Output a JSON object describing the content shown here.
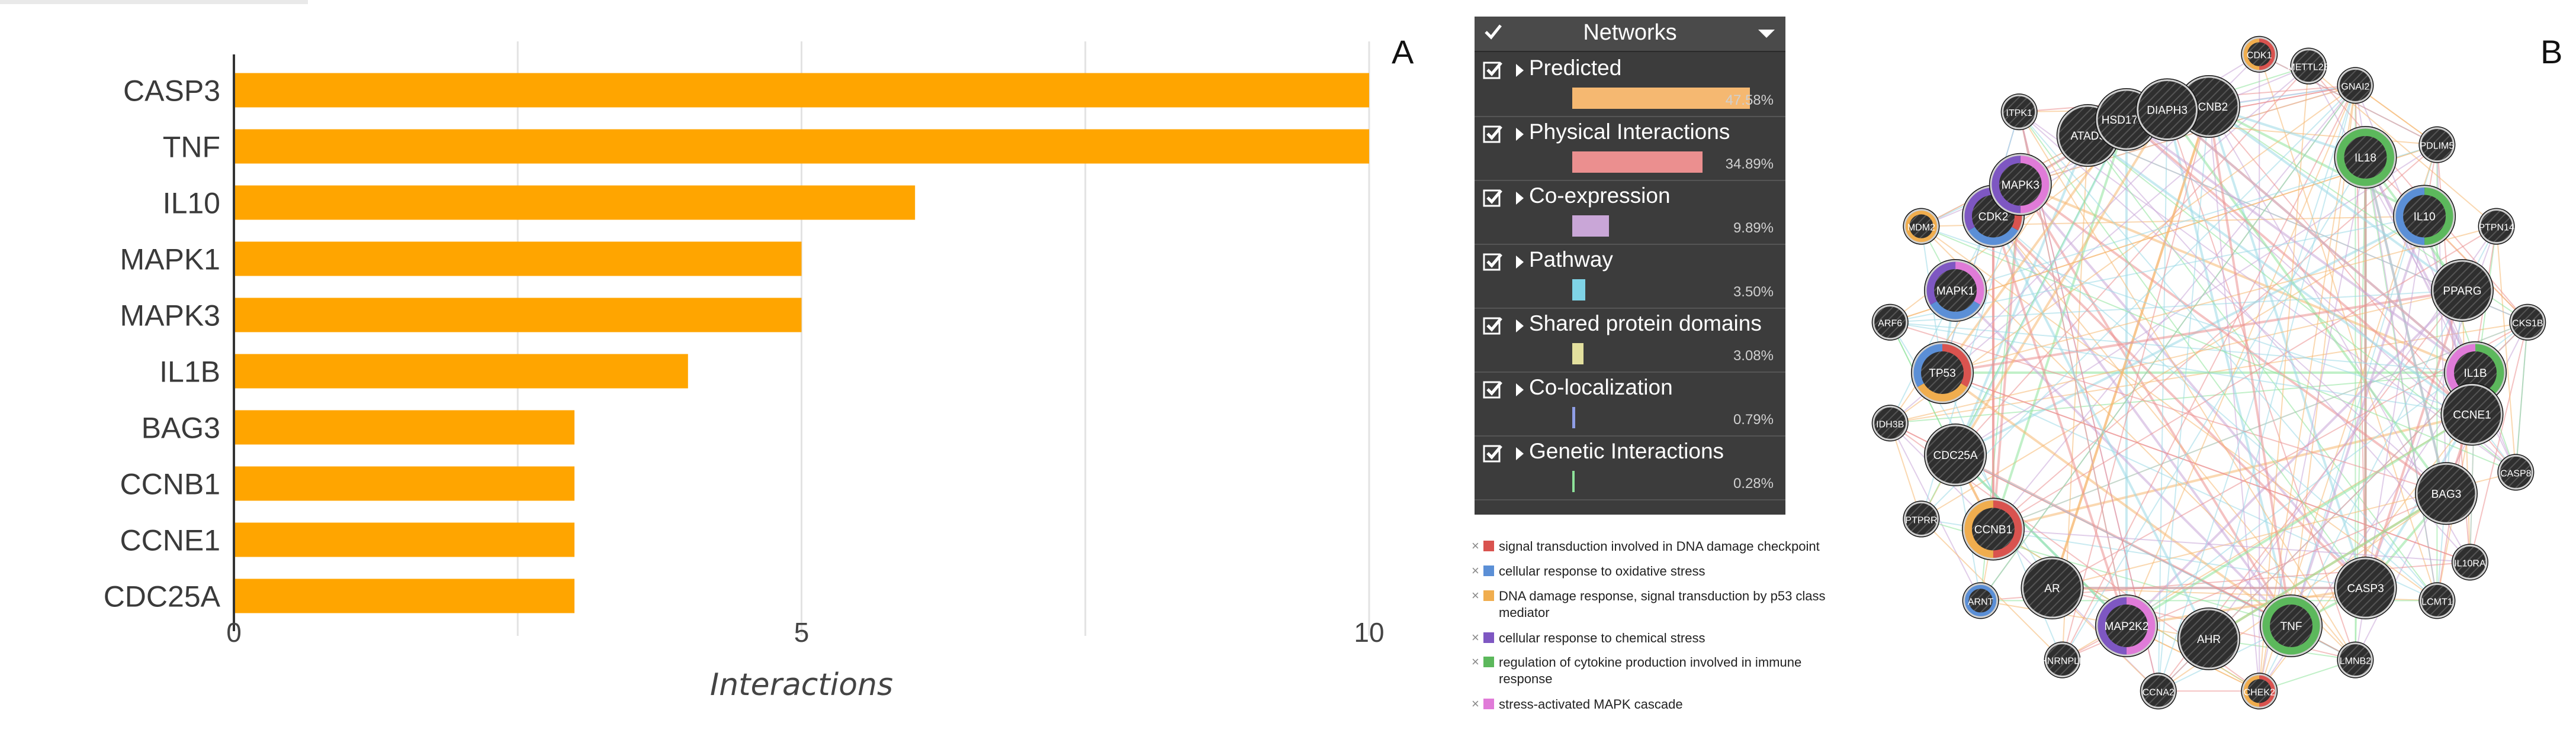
{
  "chart_data": {
    "type": "bar",
    "orientation": "horizontal",
    "categories": [
      "CASP3",
      "TNF",
      "IL10",
      "MAPK1",
      "MAPK3",
      "IL1B",
      "BAG3",
      "CCNB1",
      "CCNE1",
      "CDC25A"
    ],
    "values": [
      10,
      10,
      6,
      5,
      5,
      4,
      3,
      3,
      3,
      3
    ],
    "xlabel": "Interactions",
    "xlim": [
      0,
      10
    ],
    "xticks": [
      "0",
      "5",
      "10"
    ],
    "grid": "vertical",
    "bar_color": "#ffa500"
  },
  "panel_a_letter": "A",
  "panel_b_letter": "B",
  "networks_panel": {
    "title": "Networks",
    "rows": [
      {
        "label": "Predicted",
        "percent": "47.58%",
        "value": 47.58,
        "color": "#f5b871"
      },
      {
        "label": "Physical Interactions",
        "percent": "34.89%",
        "value": 34.89,
        "color": "#eb8f8f"
      },
      {
        "label": "Co-expression",
        "percent": "9.89%",
        "value": 9.89,
        "color": "#c9a6d7"
      },
      {
        "label": "Pathway",
        "percent": "3.50%",
        "value": 3.5,
        "color": "#7fd3e6"
      },
      {
        "label": "Shared protein domains",
        "percent": "3.08%",
        "value": 3.08,
        "color": "#e3e09e"
      },
      {
        "label": "Co-localization",
        "percent": "0.79%",
        "value": 0.79,
        "color": "#8f9ee6"
      },
      {
        "label": "Genetic Interactions",
        "percent": "0.28%",
        "value": 0.28,
        "color": "#8ee39a"
      }
    ]
  },
  "legend": [
    {
      "text": "signal transduction involved in DNA damage checkpoint",
      "color": "#d9534f"
    },
    {
      "text": "cellular response to oxidative stress",
      "color": "#5b8fd6"
    },
    {
      "text": "DNA damage response, signal transduction by p53 class mediator",
      "color": "#f0ad4e"
    },
    {
      "text": "cellular response to chemical stress",
      "color": "#7e57c2"
    },
    {
      "text": "regulation of cytokine production involved in immune response",
      "color": "#5cb85c"
    },
    {
      "text": "stress-activated MAPK cascade",
      "color": "#e07bd8"
    }
  ],
  "network": {
    "edge_colors": [
      "#f5b871",
      "#eb8f8f",
      "#c9a6d7",
      "#9ad9e6",
      "#8ee39a"
    ],
    "nodes": [
      {
        "id": "CCNB2",
        "size": "large",
        "annotations": []
      },
      {
        "id": "CDK1",
        "size": "small",
        "annotations": [
          "#d9534f",
          "#f0ad4e"
        ]
      },
      {
        "id": "METTL2B",
        "size": "small",
        "annotations": []
      },
      {
        "id": "GNAI2",
        "size": "small",
        "annotations": []
      },
      {
        "id": "IL18",
        "size": "large",
        "annotations": [
          "#5cb85c"
        ]
      },
      {
        "id": "PDLIM5",
        "size": "small",
        "annotations": []
      },
      {
        "id": "IL10",
        "size": "large",
        "annotations": [
          "#5cb85c",
          "#5b8fd6"
        ]
      },
      {
        "id": "PTPN14",
        "size": "small",
        "annotations": []
      },
      {
        "id": "PPARG",
        "size": "large",
        "annotations": []
      },
      {
        "id": "CKS1B",
        "size": "small",
        "annotations": []
      },
      {
        "id": "IL1B",
        "size": "large",
        "annotations": [
          "#5cb85c",
          "#e07bd8"
        ]
      },
      {
        "id": "CCNE1",
        "size": "large",
        "annotations": []
      },
      {
        "id": "CASP8",
        "size": "small",
        "annotations": []
      },
      {
        "id": "BAG3",
        "size": "large",
        "annotations": []
      },
      {
        "id": "IL10RA",
        "size": "small",
        "annotations": []
      },
      {
        "id": "LCMT1",
        "size": "small",
        "annotations": []
      },
      {
        "id": "CASP3",
        "size": "large",
        "annotations": []
      },
      {
        "id": "LMNB2",
        "size": "small",
        "annotations": []
      },
      {
        "id": "TNF",
        "size": "large",
        "annotations": [
          "#5cb85c"
        ]
      },
      {
        "id": "CHEK2",
        "size": "small",
        "annotations": [
          "#d9534f",
          "#f0ad4e"
        ]
      },
      {
        "id": "AHR",
        "size": "large",
        "annotations": []
      },
      {
        "id": "CCNA2",
        "size": "small",
        "annotations": []
      },
      {
        "id": "MAP2K2",
        "size": "large",
        "annotations": [
          "#e07bd8",
          "#7e57c2"
        ]
      },
      {
        "id": "HNRNPLL",
        "size": "small",
        "annotations": []
      },
      {
        "id": "AR",
        "size": "large",
        "annotations": []
      },
      {
        "id": "ARNT",
        "size": "small",
        "annotations": [
          "#5b8fd6"
        ]
      },
      {
        "id": "CCNB1",
        "size": "large",
        "annotations": [
          "#d9534f",
          "#f0ad4e"
        ]
      },
      {
        "id": "PTPRR",
        "size": "small",
        "annotations": []
      },
      {
        "id": "CDC25A",
        "size": "large",
        "annotations": []
      },
      {
        "id": "IDH3B",
        "size": "small",
        "annotations": []
      },
      {
        "id": "TP53",
        "size": "large",
        "annotations": [
          "#d9534f",
          "#f0ad4e",
          "#5b8fd6"
        ]
      },
      {
        "id": "ARF6",
        "size": "small",
        "annotations": []
      },
      {
        "id": "MAPK1",
        "size": "large",
        "annotations": [
          "#e07bd8",
          "#5b8fd6",
          "#7e57c2"
        ]
      },
      {
        "id": "MDM2",
        "size": "small",
        "annotations": [
          "#f0ad4e"
        ]
      },
      {
        "id": "CDK2",
        "size": "large",
        "annotations": [
          "#d9534f",
          "#5b8fd6",
          "#7e57c2"
        ]
      },
      {
        "id": "MAPK3",
        "size": "large",
        "annotations": [
          "#e07bd8",
          "#7e57c2"
        ]
      },
      {
        "id": "ITPK1",
        "size": "small",
        "annotations": []
      },
      {
        "id": "ATAD5",
        "size": "large",
        "annotations": []
      },
      {
        "id": "HSD17B6",
        "size": "large",
        "annotations": []
      },
      {
        "id": "DIAPH3",
        "size": "large",
        "annotations": []
      }
    ]
  }
}
